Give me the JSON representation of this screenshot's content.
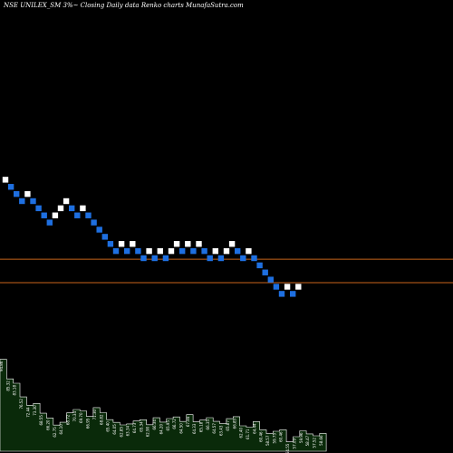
{
  "chart_data": {
    "type": "renko",
    "title": "NSE UNILEX_SM 3%~  Closing Daily data  Renko  charts MunafaSutra.com",
    "colors": {
      "background": "#000000",
      "up_brick": "#ffffff",
      "down_brick": "#1e6fe0",
      "level_line": "#c8651b",
      "volume_fill": "#0a2a0a",
      "volume_stroke": "#ffffff"
    },
    "price_range": [
      62,
      110
    ],
    "levels": [
      85.8,
      81.2
    ],
    "bricks": [
      {
        "dir": "up",
        "price": 101.4
      },
      {
        "dir": "down",
        "price": 100.0
      },
      {
        "dir": "down",
        "price": 98.6
      },
      {
        "dir": "down",
        "price": 97.2
      },
      {
        "dir": "up",
        "price": 98.6
      },
      {
        "dir": "down",
        "price": 97.2
      },
      {
        "dir": "down",
        "price": 95.8
      },
      {
        "dir": "down",
        "price": 94.4
      },
      {
        "dir": "down",
        "price": 93.0
      },
      {
        "dir": "up",
        "price": 94.4
      },
      {
        "dir": "up",
        "price": 95.8
      },
      {
        "dir": "up",
        "price": 97.2
      },
      {
        "dir": "down",
        "price": 95.8
      },
      {
        "dir": "down",
        "price": 94.4
      },
      {
        "dir": "up",
        "price": 95.8
      },
      {
        "dir": "down",
        "price": 94.4
      },
      {
        "dir": "down",
        "price": 93.0
      },
      {
        "dir": "down",
        "price": 91.6
      },
      {
        "dir": "down",
        "price": 90.2
      },
      {
        "dir": "down",
        "price": 88.8
      },
      {
        "dir": "down",
        "price": 87.4
      },
      {
        "dir": "up",
        "price": 88.8
      },
      {
        "dir": "down",
        "price": 87.4
      },
      {
        "dir": "up",
        "price": 88.8
      },
      {
        "dir": "down",
        "price": 87.4
      },
      {
        "dir": "down",
        "price": 86.0
      },
      {
        "dir": "up",
        "price": 87.4
      },
      {
        "dir": "down",
        "price": 86.0
      },
      {
        "dir": "up",
        "price": 87.4
      },
      {
        "dir": "down",
        "price": 86.0
      },
      {
        "dir": "up",
        "price": 87.4
      },
      {
        "dir": "up",
        "price": 88.8
      },
      {
        "dir": "down",
        "price": 87.4
      },
      {
        "dir": "up",
        "price": 88.8
      },
      {
        "dir": "down",
        "price": 87.4
      },
      {
        "dir": "up",
        "price": 88.8
      },
      {
        "dir": "down",
        "price": 87.4
      },
      {
        "dir": "down",
        "price": 86.0
      },
      {
        "dir": "up",
        "price": 87.4
      },
      {
        "dir": "down",
        "price": 86.0
      },
      {
        "dir": "up",
        "price": 87.4
      },
      {
        "dir": "up",
        "price": 88.8
      },
      {
        "dir": "down",
        "price": 87.4
      },
      {
        "dir": "down",
        "price": 86.0
      },
      {
        "dir": "up",
        "price": 87.4
      },
      {
        "dir": "down",
        "price": 86.0
      },
      {
        "dir": "down",
        "price": 84.6
      },
      {
        "dir": "down",
        "price": 83.2
      },
      {
        "dir": "down",
        "price": 81.8
      },
      {
        "dir": "down",
        "price": 80.4
      },
      {
        "dir": "down",
        "price": 79.0
      },
      {
        "dir": "up",
        "price": 80.4
      },
      {
        "dir": "down",
        "price": 79.0
      },
      {
        "dir": "up",
        "price": 80.4
      }
    ],
    "volume_labels": [
      "94.86",
      "85.32",
      "83.18",
      "76.52",
      "72.44",
      "73.30",
      "68.55",
      "66.20",
      "62.75",
      "64.10",
      "68.72",
      "70.34",
      "69.70",
      "66.95",
      "71.30",
      "68.82",
      "65.40",
      "64.05",
      "62.85",
      "63.34",
      "64.73",
      "65.34",
      "62.90",
      "66.34",
      "64.20",
      "65.95",
      "66.72",
      "64.50",
      "67.84",
      "64.33",
      "65.18",
      "66.35",
      "64.57",
      "63.43",
      "65.87",
      "66.85",
      "62.40",
      "61.71",
      "64.44",
      "60.46",
      "58.57",
      "59.75",
      "60.46",
      "54.55",
      "57.09",
      "59.96",
      "58.47",
      "57.52",
      "58.66"
    ]
  }
}
